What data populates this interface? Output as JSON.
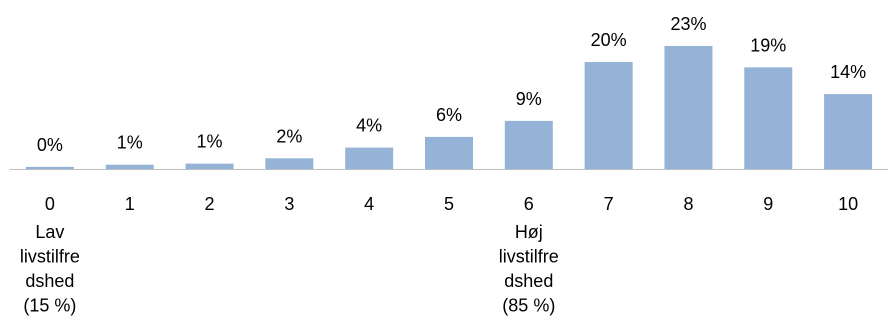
{
  "chart_data": {
    "type": "bar",
    "categories": [
      "0",
      "1",
      "2",
      "3",
      "4",
      "5",
      "6",
      "7",
      "8",
      "9",
      "10"
    ],
    "values": [
      0.4,
      0.8,
      1,
      2,
      4,
      6,
      9,
      20,
      23,
      19,
      14
    ],
    "data_labels": [
      "0%",
      "1%",
      "1%",
      "2%",
      "4%",
      "6%",
      "9%",
      "20%",
      "23%",
      "19%",
      "14%"
    ],
    "annotations": [
      {
        "category": "0",
        "lines": [
          "Lav",
          "livstilfre",
          "dshed",
          "(15 %)"
        ]
      },
      {
        "category": "6",
        "lines": [
          "Høj",
          "livstilfre",
          "dshed",
          "(85 %)"
        ]
      }
    ],
    "ylim": [
      0,
      25
    ],
    "grid": false,
    "legend": "none",
    "colors": {
      "bar": "#95B3D7",
      "axis": "#BFBFBF",
      "text": "#000000"
    }
  }
}
